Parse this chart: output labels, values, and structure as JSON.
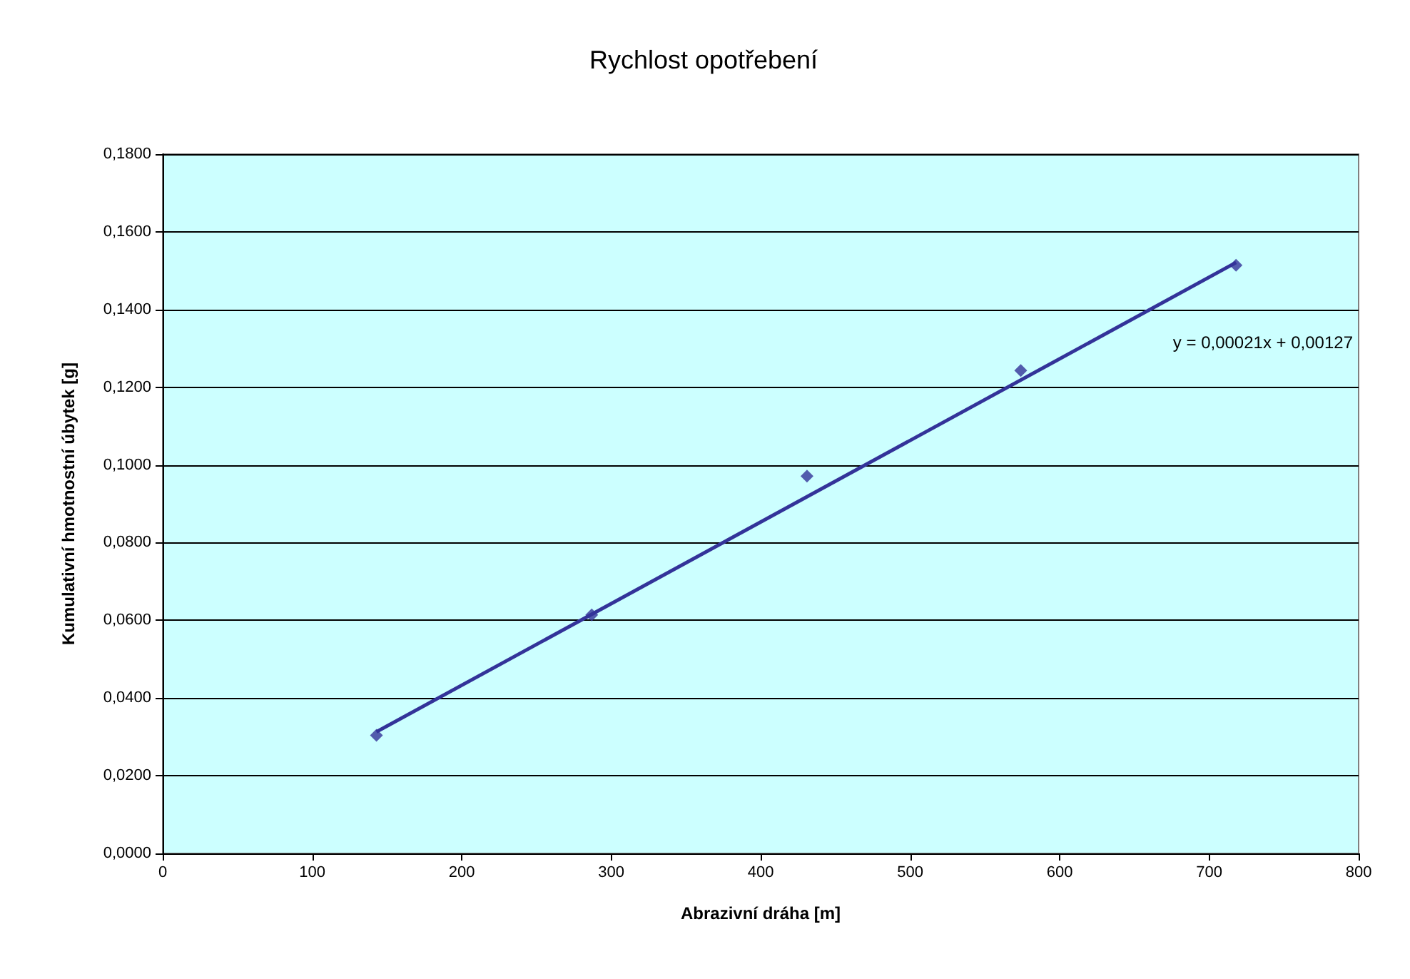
{
  "chart_data": {
    "type": "scatter",
    "title": "Rychlost opotřebení",
    "xlabel": "Abrazivní dráha [m]",
    "ylabel": "Kumulativní hmotnostní úbytek [g]",
    "x": [
      143,
      287,
      431,
      574,
      718
    ],
    "series": [
      {
        "color": "#333399",
        "values": [
          0.0304,
          0.0614,
          0.0971,
          0.1243,
          0.1514
        ],
        "marker": "diamond"
      },
      {
        "type": "line",
        "color": "#333399",
        "x": [
          143,
          718
        ],
        "values": [
          0.0313,
          0.1521
        ],
        "marker": "none"
      }
    ],
    "annotations": [
      "y = 0,00021x + 0,00127"
    ],
    "xlim": [
      0,
      800
    ],
    "xticks": [
      0,
      100,
      200,
      300,
      400,
      500,
      600,
      700,
      800
    ],
    "ylim": [
      0,
      0.18
    ],
    "yticks": [
      {
        "value": 0,
        "label": "0,0000"
      },
      {
        "value": 0.02,
        "label": "0,0200"
      },
      {
        "value": 0.04,
        "label": "0,0400"
      },
      {
        "value": 0.06,
        "label": "0,0600"
      },
      {
        "value": 0.08,
        "label": "0,0800"
      },
      {
        "value": 0.1,
        "label": "0,1000"
      },
      {
        "value": 0.12,
        "label": "0,1200"
      },
      {
        "value": 0.14,
        "label": "0,1400"
      },
      {
        "value": 0.16,
        "label": "0,1600"
      },
      {
        "value": 0.18,
        "label": "0,1800"
      }
    ],
    "grid": "y"
  }
}
